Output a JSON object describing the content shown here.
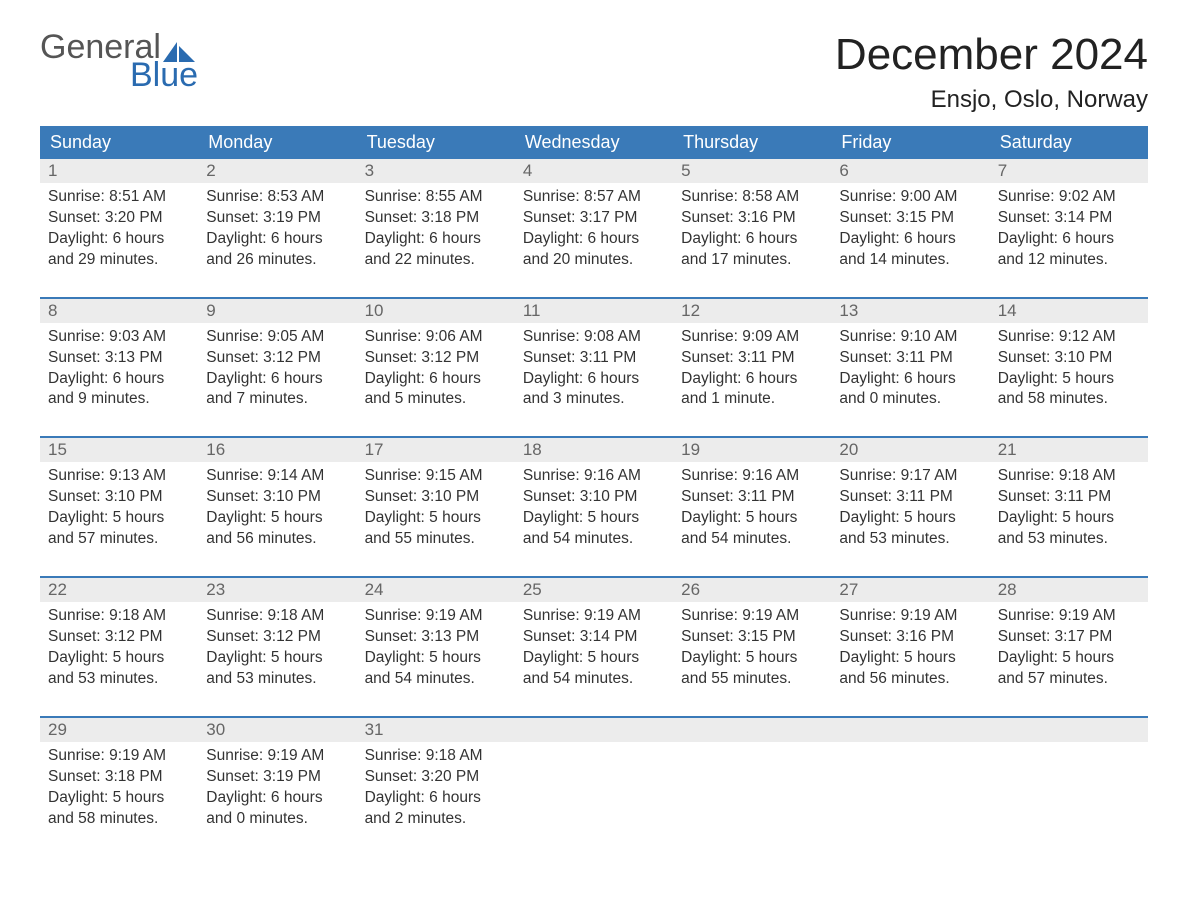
{
  "logo": {
    "word1": "General",
    "word2": "Blue"
  },
  "title": "December 2024",
  "location": "Ensjo, Oslo, Norway",
  "colors": {
    "header_bg": "#3a7ab8",
    "header_text": "#ffffff",
    "daynum_bg": "#ececec",
    "daynum_text": "#666666",
    "body_text": "#333333",
    "separator": "#3a7ab8",
    "logo_gray": "#555555",
    "logo_blue": "#2a6bb0"
  },
  "day_headers": [
    "Sunday",
    "Monday",
    "Tuesday",
    "Wednesday",
    "Thursday",
    "Friday",
    "Saturday"
  ],
  "weeks": [
    [
      {
        "n": "1",
        "sr": "Sunrise: 8:51 AM",
        "ss": "Sunset: 3:20 PM",
        "d1": "Daylight: 6 hours",
        "d2": "and 29 minutes."
      },
      {
        "n": "2",
        "sr": "Sunrise: 8:53 AM",
        "ss": "Sunset: 3:19 PM",
        "d1": "Daylight: 6 hours",
        "d2": "and 26 minutes."
      },
      {
        "n": "3",
        "sr": "Sunrise: 8:55 AM",
        "ss": "Sunset: 3:18 PM",
        "d1": "Daylight: 6 hours",
        "d2": "and 22 minutes."
      },
      {
        "n": "4",
        "sr": "Sunrise: 8:57 AM",
        "ss": "Sunset: 3:17 PM",
        "d1": "Daylight: 6 hours",
        "d2": "and 20 minutes."
      },
      {
        "n": "5",
        "sr": "Sunrise: 8:58 AM",
        "ss": "Sunset: 3:16 PM",
        "d1": "Daylight: 6 hours",
        "d2": "and 17 minutes."
      },
      {
        "n": "6",
        "sr": "Sunrise: 9:00 AM",
        "ss": "Sunset: 3:15 PM",
        "d1": "Daylight: 6 hours",
        "d2": "and 14 minutes."
      },
      {
        "n": "7",
        "sr": "Sunrise: 9:02 AM",
        "ss": "Sunset: 3:14 PM",
        "d1": "Daylight: 6 hours",
        "d2": "and 12 minutes."
      }
    ],
    [
      {
        "n": "8",
        "sr": "Sunrise: 9:03 AM",
        "ss": "Sunset: 3:13 PM",
        "d1": "Daylight: 6 hours",
        "d2": "and 9 minutes."
      },
      {
        "n": "9",
        "sr": "Sunrise: 9:05 AM",
        "ss": "Sunset: 3:12 PM",
        "d1": "Daylight: 6 hours",
        "d2": "and 7 minutes."
      },
      {
        "n": "10",
        "sr": "Sunrise: 9:06 AM",
        "ss": "Sunset: 3:12 PM",
        "d1": "Daylight: 6 hours",
        "d2": "and 5 minutes."
      },
      {
        "n": "11",
        "sr": "Sunrise: 9:08 AM",
        "ss": "Sunset: 3:11 PM",
        "d1": "Daylight: 6 hours",
        "d2": "and 3 minutes."
      },
      {
        "n": "12",
        "sr": "Sunrise: 9:09 AM",
        "ss": "Sunset: 3:11 PM",
        "d1": "Daylight: 6 hours",
        "d2": "and 1 minute."
      },
      {
        "n": "13",
        "sr": "Sunrise: 9:10 AM",
        "ss": "Sunset: 3:11 PM",
        "d1": "Daylight: 6 hours",
        "d2": "and 0 minutes."
      },
      {
        "n": "14",
        "sr": "Sunrise: 9:12 AM",
        "ss": "Sunset: 3:10 PM",
        "d1": "Daylight: 5 hours",
        "d2": "and 58 minutes."
      }
    ],
    [
      {
        "n": "15",
        "sr": "Sunrise: 9:13 AM",
        "ss": "Sunset: 3:10 PM",
        "d1": "Daylight: 5 hours",
        "d2": "and 57 minutes."
      },
      {
        "n": "16",
        "sr": "Sunrise: 9:14 AM",
        "ss": "Sunset: 3:10 PM",
        "d1": "Daylight: 5 hours",
        "d2": "and 56 minutes."
      },
      {
        "n": "17",
        "sr": "Sunrise: 9:15 AM",
        "ss": "Sunset: 3:10 PM",
        "d1": "Daylight: 5 hours",
        "d2": "and 55 minutes."
      },
      {
        "n": "18",
        "sr": "Sunrise: 9:16 AM",
        "ss": "Sunset: 3:10 PM",
        "d1": "Daylight: 5 hours",
        "d2": "and 54 minutes."
      },
      {
        "n": "19",
        "sr": "Sunrise: 9:16 AM",
        "ss": "Sunset: 3:11 PM",
        "d1": "Daylight: 5 hours",
        "d2": "and 54 minutes."
      },
      {
        "n": "20",
        "sr": "Sunrise: 9:17 AM",
        "ss": "Sunset: 3:11 PM",
        "d1": "Daylight: 5 hours",
        "d2": "and 53 minutes."
      },
      {
        "n": "21",
        "sr": "Sunrise: 9:18 AM",
        "ss": "Sunset: 3:11 PM",
        "d1": "Daylight: 5 hours",
        "d2": "and 53 minutes."
      }
    ],
    [
      {
        "n": "22",
        "sr": "Sunrise: 9:18 AM",
        "ss": "Sunset: 3:12 PM",
        "d1": "Daylight: 5 hours",
        "d2": "and 53 minutes."
      },
      {
        "n": "23",
        "sr": "Sunrise: 9:18 AM",
        "ss": "Sunset: 3:12 PM",
        "d1": "Daylight: 5 hours",
        "d2": "and 53 minutes."
      },
      {
        "n": "24",
        "sr": "Sunrise: 9:19 AM",
        "ss": "Sunset: 3:13 PM",
        "d1": "Daylight: 5 hours",
        "d2": "and 54 minutes."
      },
      {
        "n": "25",
        "sr": "Sunrise: 9:19 AM",
        "ss": "Sunset: 3:14 PM",
        "d1": "Daylight: 5 hours",
        "d2": "and 54 minutes."
      },
      {
        "n": "26",
        "sr": "Sunrise: 9:19 AM",
        "ss": "Sunset: 3:15 PM",
        "d1": "Daylight: 5 hours",
        "d2": "and 55 minutes."
      },
      {
        "n": "27",
        "sr": "Sunrise: 9:19 AM",
        "ss": "Sunset: 3:16 PM",
        "d1": "Daylight: 5 hours",
        "d2": "and 56 minutes."
      },
      {
        "n": "28",
        "sr": "Sunrise: 9:19 AM",
        "ss": "Sunset: 3:17 PM",
        "d1": "Daylight: 5 hours",
        "d2": "and 57 minutes."
      }
    ],
    [
      {
        "n": "29",
        "sr": "Sunrise: 9:19 AM",
        "ss": "Sunset: 3:18 PM",
        "d1": "Daylight: 5 hours",
        "d2": "and 58 minutes."
      },
      {
        "n": "30",
        "sr": "Sunrise: 9:19 AM",
        "ss": "Sunset: 3:19 PM",
        "d1": "Daylight: 6 hours",
        "d2": "and 0 minutes."
      },
      {
        "n": "31",
        "sr": "Sunrise: 9:18 AM",
        "ss": "Sunset: 3:20 PM",
        "d1": "Daylight: 6 hours",
        "d2": "and 2 minutes."
      },
      null,
      null,
      null,
      null
    ]
  ]
}
